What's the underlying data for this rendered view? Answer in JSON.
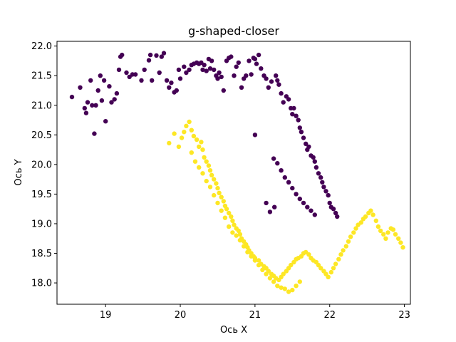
{
  "chart_data": {
    "type": "scatter",
    "title": "g-shaped-closer",
    "xlabel": "Ось X",
    "ylabel": "Ось Y",
    "xlim": [
      18.35,
      23.08
    ],
    "ylim": [
      17.64,
      22.08
    ],
    "xticks": [
      19,
      20,
      21,
      22,
      23
    ],
    "yticks": [
      18.0,
      18.5,
      19.0,
      19.5,
      20.0,
      20.5,
      21.0,
      21.5,
      22.0
    ],
    "xtick_labels": [
      "19",
      "20",
      "21",
      "22",
      "23"
    ],
    "ytick_labels": [
      "18.0",
      "18.5",
      "19.0",
      "19.5",
      "20.0",
      "20.5",
      "21.0",
      "21.5",
      "22.0"
    ],
    "grid": false,
    "legend": "none",
    "series": [
      {
        "color": "#440154",
        "points": [
          [
            18.55,
            21.14
          ],
          [
            18.66,
            21.3
          ],
          [
            18.72,
            20.95
          ],
          [
            18.74,
            20.87
          ],
          [
            18.76,
            21.05
          ],
          [
            18.8,
            21.42
          ],
          [
            18.82,
            21.0
          ],
          [
            18.85,
            20.52
          ],
          [
            18.87,
            21.0
          ],
          [
            18.9,
            21.25
          ],
          [
            18.93,
            21.5
          ],
          [
            18.95,
            21.08
          ],
          [
            18.98,
            21.42
          ],
          [
            19.0,
            20.73
          ],
          [
            19.05,
            21.32
          ],
          [
            19.08,
            21.05
          ],
          [
            19.12,
            21.1
          ],
          [
            19.15,
            21.2
          ],
          [
            19.18,
            21.6
          ],
          [
            19.2,
            21.82
          ],
          [
            19.22,
            21.85
          ],
          [
            19.28,
            21.55
          ],
          [
            19.32,
            21.48
          ],
          [
            19.36,
            21.52
          ],
          [
            19.4,
            21.52
          ],
          [
            19.48,
            21.42
          ],
          [
            19.52,
            21.6
          ],
          [
            19.58,
            21.76
          ],
          [
            19.6,
            21.85
          ],
          [
            19.62,
            21.42
          ],
          [
            19.68,
            21.84
          ],
          [
            19.72,
            21.55
          ],
          [
            19.75,
            21.82
          ],
          [
            19.78,
            21.88
          ],
          [
            19.82,
            21.42
          ],
          [
            19.85,
            21.3
          ],
          [
            19.88,
            21.38
          ],
          [
            19.92,
            21.22
          ],
          [
            19.95,
            21.25
          ],
          [
            19.98,
            21.6
          ],
          [
            20.0,
            21.45
          ],
          [
            20.05,
            21.65
          ],
          [
            20.08,
            21.55
          ],
          [
            20.12,
            21.6
          ],
          [
            20.15,
            21.68
          ],
          [
            20.18,
            21.7
          ],
          [
            20.22,
            21.72
          ],
          [
            20.25,
            21.7
          ],
          [
            20.28,
            21.72
          ],
          [
            20.3,
            21.6
          ],
          [
            20.32,
            21.68
          ],
          [
            20.35,
            21.58
          ],
          [
            20.38,
            21.78
          ],
          [
            20.4,
            21.62
          ],
          [
            20.42,
            21.75
          ],
          [
            20.45,
            21.6
          ],
          [
            20.48,
            21.5
          ],
          [
            20.5,
            21.45
          ],
          [
            20.52,
            21.55
          ],
          [
            20.55,
            21.48
          ],
          [
            20.58,
            21.25
          ],
          [
            20.62,
            21.75
          ],
          [
            20.65,
            21.8
          ],
          [
            20.68,
            21.82
          ],
          [
            20.72,
            21.5
          ],
          [
            20.75,
            21.65
          ],
          [
            20.78,
            21.72
          ],
          [
            20.82,
            21.3
          ],
          [
            20.85,
            21.45
          ],
          [
            20.88,
            21.5
          ],
          [
            20.92,
            21.75
          ],
          [
            20.95,
            21.52
          ],
          [
            20.98,
            21.8
          ],
          [
            21.0,
            21.78
          ],
          [
            21.02,
            21.7
          ],
          [
            21.05,
            21.85
          ],
          [
            21.08,
            21.62
          ],
          [
            21.12,
            21.5
          ],
          [
            21.15,
            21.45
          ],
          [
            21.18,
            21.3
          ],
          [
            21.22,
            21.4
          ],
          [
            21.28,
            21.5
          ],
          [
            21.3,
            21.42
          ],
          [
            21.32,
            21.35
          ],
          [
            21.35,
            21.2
          ],
          [
            21.38,
            21.05
          ],
          [
            21.42,
            21.15
          ],
          [
            21.45,
            21.1
          ],
          [
            21.48,
            20.95
          ],
          [
            21.5,
            20.85
          ],
          [
            21.52,
            20.95
          ],
          [
            21.55,
            20.82
          ],
          [
            21.58,
            20.75
          ],
          [
            21.6,
            20.62
          ],
          [
            21.62,
            20.55
          ],
          [
            21.65,
            20.45
          ],
          [
            21.68,
            20.35
          ],
          [
            21.7,
            20.25
          ],
          [
            21.72,
            20.3
          ],
          [
            21.75,
            20.15
          ],
          [
            21.78,
            20.12
          ],
          [
            21.8,
            20.05
          ],
          [
            21.82,
            19.95
          ],
          [
            21.85,
            19.85
          ],
          [
            21.88,
            19.78
          ],
          [
            21.9,
            19.7
          ],
          [
            21.92,
            19.62
          ],
          [
            21.95,
            19.55
          ],
          [
            21.98,
            19.48
          ],
          [
            22.0,
            19.35
          ],
          [
            22.02,
            19.28
          ],
          [
            22.05,
            19.25
          ],
          [
            22.08,
            19.18
          ],
          [
            22.1,
            19.12
          ],
          [
            21.25,
            20.1
          ],
          [
            21.3,
            20.02
          ],
          [
            21.35,
            19.9
          ],
          [
            21.4,
            19.78
          ],
          [
            21.45,
            19.7
          ],
          [
            21.5,
            19.6
          ],
          [
            21.55,
            19.5
          ],
          [
            21.6,
            19.42
          ],
          [
            21.65,
            19.35
          ],
          [
            21.7,
            19.28
          ],
          [
            21.75,
            19.22
          ],
          [
            21.8,
            19.15
          ],
          [
            21.15,
            19.35
          ],
          [
            21.2,
            19.2
          ],
          [
            21.26,
            19.28
          ],
          [
            21.0,
            20.5
          ]
        ]
      },
      {
        "color": "#fde725",
        "points": [
          [
            19.85,
            20.36
          ],
          [
            19.92,
            20.52
          ],
          [
            19.98,
            20.3
          ],
          [
            20.02,
            20.45
          ],
          [
            20.05,
            20.55
          ],
          [
            20.08,
            20.65
          ],
          [
            20.12,
            20.72
          ],
          [
            20.15,
            20.58
          ],
          [
            20.18,
            20.48
          ],
          [
            20.22,
            20.42
          ],
          [
            20.25,
            20.3
          ],
          [
            20.28,
            20.38
          ],
          [
            20.3,
            20.25
          ],
          [
            20.32,
            20.12
          ],
          [
            20.35,
            20.05
          ],
          [
            20.38,
            19.98
          ],
          [
            20.4,
            19.9
          ],
          [
            20.42,
            19.82
          ],
          [
            20.45,
            19.75
          ],
          [
            20.48,
            19.68
          ],
          [
            20.5,
            19.6
          ],
          [
            20.52,
            19.52
          ],
          [
            20.55,
            19.45
          ],
          [
            20.58,
            19.38
          ],
          [
            20.6,
            19.3
          ],
          [
            20.62,
            19.25
          ],
          [
            20.65,
            19.18
          ],
          [
            20.68,
            19.12
          ],
          [
            20.7,
            19.05
          ],
          [
            20.72,
            18.98
          ],
          [
            20.75,
            18.92
          ],
          [
            20.78,
            18.88
          ],
          [
            20.8,
            18.82
          ],
          [
            20.82,
            18.75
          ],
          [
            20.85,
            18.7
          ],
          [
            20.88,
            18.65
          ],
          [
            20.9,
            18.6
          ],
          [
            20.92,
            18.55
          ],
          [
            20.95,
            18.5
          ],
          [
            20.98,
            18.45
          ],
          [
            21.0,
            18.42
          ],
          [
            21.05,
            18.38
          ],
          [
            21.08,
            18.32
          ],
          [
            21.12,
            18.28
          ],
          [
            21.15,
            18.25
          ],
          [
            21.18,
            18.2
          ],
          [
            21.22,
            18.15
          ],
          [
            21.25,
            18.12
          ],
          [
            21.28,
            18.08
          ],
          [
            21.32,
            18.05
          ],
          [
            21.35,
            18.1
          ],
          [
            21.38,
            18.15
          ],
          [
            21.42,
            18.2
          ],
          [
            21.45,
            18.25
          ],
          [
            21.48,
            18.3
          ],
          [
            21.52,
            18.35
          ],
          [
            21.55,
            18.4
          ],
          [
            21.58,
            18.42
          ],
          [
            21.62,
            18.45
          ],
          [
            21.65,
            18.5
          ],
          [
            21.68,
            18.52
          ],
          [
            21.72,
            18.48
          ],
          [
            21.75,
            18.42
          ],
          [
            21.78,
            18.38
          ],
          [
            21.82,
            18.35
          ],
          [
            21.85,
            18.3
          ],
          [
            21.88,
            18.25
          ],
          [
            21.92,
            18.2
          ],
          [
            21.95,
            18.15
          ],
          [
            21.98,
            18.1
          ],
          [
            22.02,
            18.18
          ],
          [
            22.05,
            18.25
          ],
          [
            22.08,
            18.32
          ],
          [
            22.12,
            18.4
          ],
          [
            22.15,
            18.48
          ],
          [
            22.18,
            18.55
          ],
          [
            22.22,
            18.62
          ],
          [
            22.25,
            18.7
          ],
          [
            22.28,
            18.78
          ],
          [
            22.32,
            18.85
          ],
          [
            22.35,
            18.92
          ],
          [
            22.38,
            18.98
          ],
          [
            22.42,
            19.02
          ],
          [
            22.45,
            19.08
          ],
          [
            22.48,
            19.12
          ],
          [
            22.52,
            19.18
          ],
          [
            22.55,
            19.22
          ],
          [
            22.58,
            19.15
          ],
          [
            22.62,
            19.05
          ],
          [
            22.65,
            18.95
          ],
          [
            22.68,
            18.88
          ],
          [
            22.72,
            18.82
          ],
          [
            22.75,
            18.75
          ],
          [
            22.78,
            18.85
          ],
          [
            22.82,
            18.92
          ],
          [
            22.85,
            18.9
          ],
          [
            22.88,
            18.82
          ],
          [
            22.92,
            18.75
          ],
          [
            22.95,
            18.68
          ],
          [
            22.98,
            18.6
          ],
          [
            20.15,
            20.2
          ],
          [
            20.2,
            20.05
          ],
          [
            20.25,
            19.95
          ],
          [
            20.3,
            19.85
          ],
          [
            20.35,
            19.72
          ],
          [
            20.4,
            19.62
          ],
          [
            20.45,
            19.48
          ],
          [
            20.5,
            19.35
          ],
          [
            20.55,
            19.22
          ],
          [
            20.6,
            19.1
          ],
          [
            20.65,
            18.95
          ],
          [
            20.7,
            18.85
          ],
          [
            20.75,
            18.8
          ],
          [
            20.8,
            18.72
          ],
          [
            20.85,
            18.62
          ],
          [
            20.9,
            18.52
          ],
          [
            20.95,
            18.45
          ],
          [
            21.0,
            18.38
          ],
          [
            21.05,
            18.3
          ],
          [
            21.1,
            18.22
          ],
          [
            21.15,
            18.15
          ],
          [
            21.2,
            18.08
          ],
          [
            21.25,
            18.02
          ],
          [
            21.3,
            17.95
          ],
          [
            21.35,
            17.92
          ],
          [
            21.4,
            17.9
          ],
          [
            21.45,
            17.85
          ],
          [
            21.5,
            17.88
          ],
          [
            21.55,
            17.95
          ],
          [
            21.6,
            18.02
          ]
        ]
      }
    ]
  }
}
